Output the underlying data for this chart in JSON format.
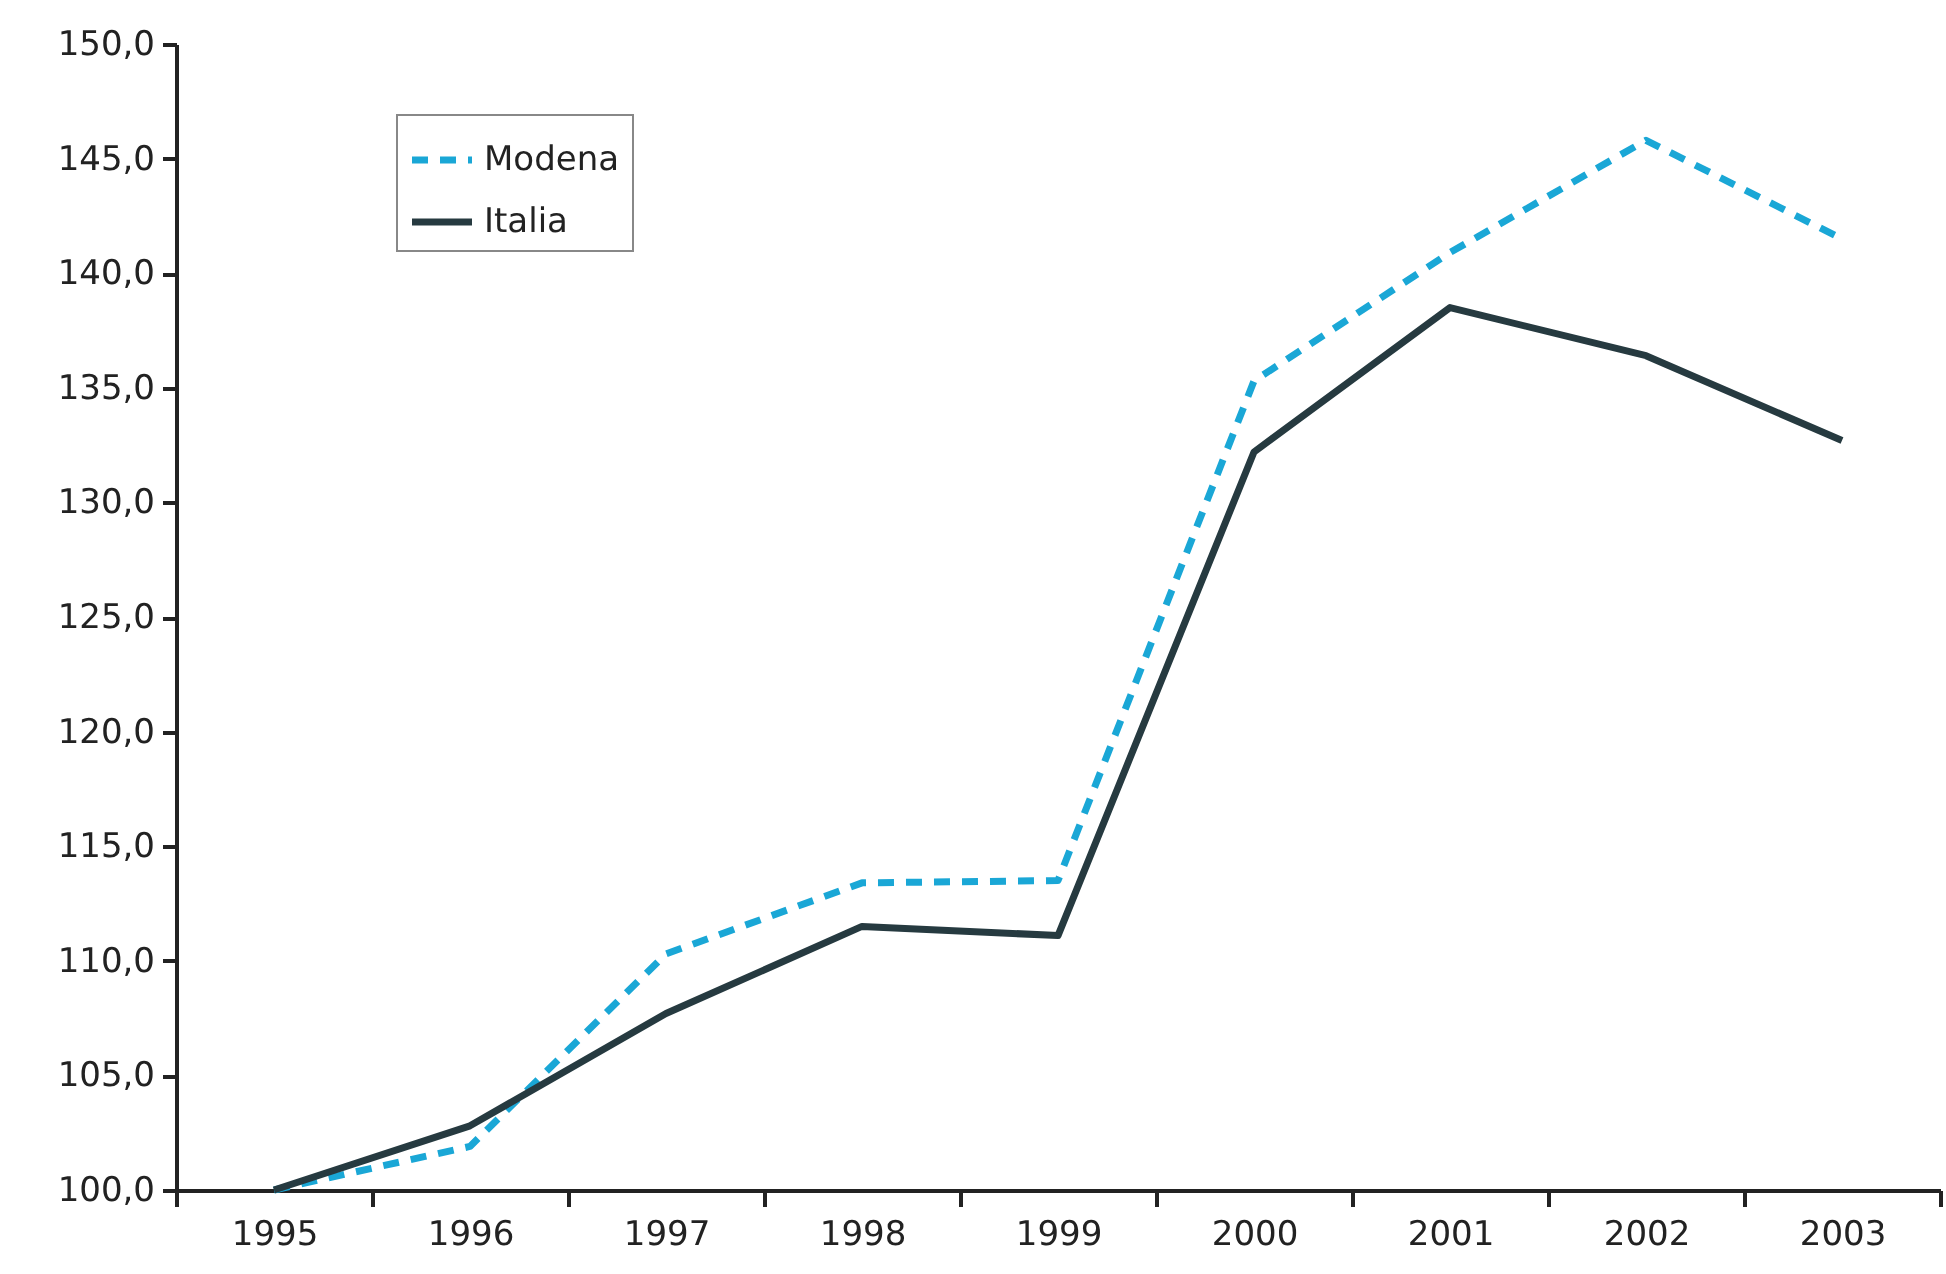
{
  "chart_data": {
    "type": "line",
    "categories": [
      "1995",
      "1996",
      "1997",
      "1998",
      "1999",
      "2000",
      "2001",
      "2002",
      "2003"
    ],
    "series": [
      {
        "name": "Modena",
        "color": "#1aa7d6",
        "line_style": "dashed",
        "values": [
          100.0,
          101.9,
          110.3,
          113.4,
          113.5,
          135.3,
          140.9,
          145.8,
          141.5
        ]
      },
      {
        "name": "Italia",
        "color": "#263a40",
        "line_style": "solid",
        "values": [
          100.0,
          102.8,
          107.7,
          111.5,
          111.1,
          132.2,
          138.5,
          136.4,
          132.7
        ]
      }
    ],
    "ylim": [
      100,
      150
    ],
    "yticks": [
      {
        "value": 100,
        "label": "100,0"
      },
      {
        "value": 105,
        "label": "105,0"
      },
      {
        "value": 110,
        "label": "110,0"
      },
      {
        "value": 115,
        "label": "115,0"
      },
      {
        "value": 120,
        "label": "120,0"
      },
      {
        "value": 125,
        "label": "125,0"
      },
      {
        "value": 130,
        "label": "130,0"
      },
      {
        "value": 135,
        "label": "135,0"
      },
      {
        "value": 140,
        "label": "140,0"
      },
      {
        "value": 145,
        "label": "145,0"
      },
      {
        "value": 150,
        "label": "150,0"
      }
    ],
    "grid": false,
    "legend": "top left"
  }
}
